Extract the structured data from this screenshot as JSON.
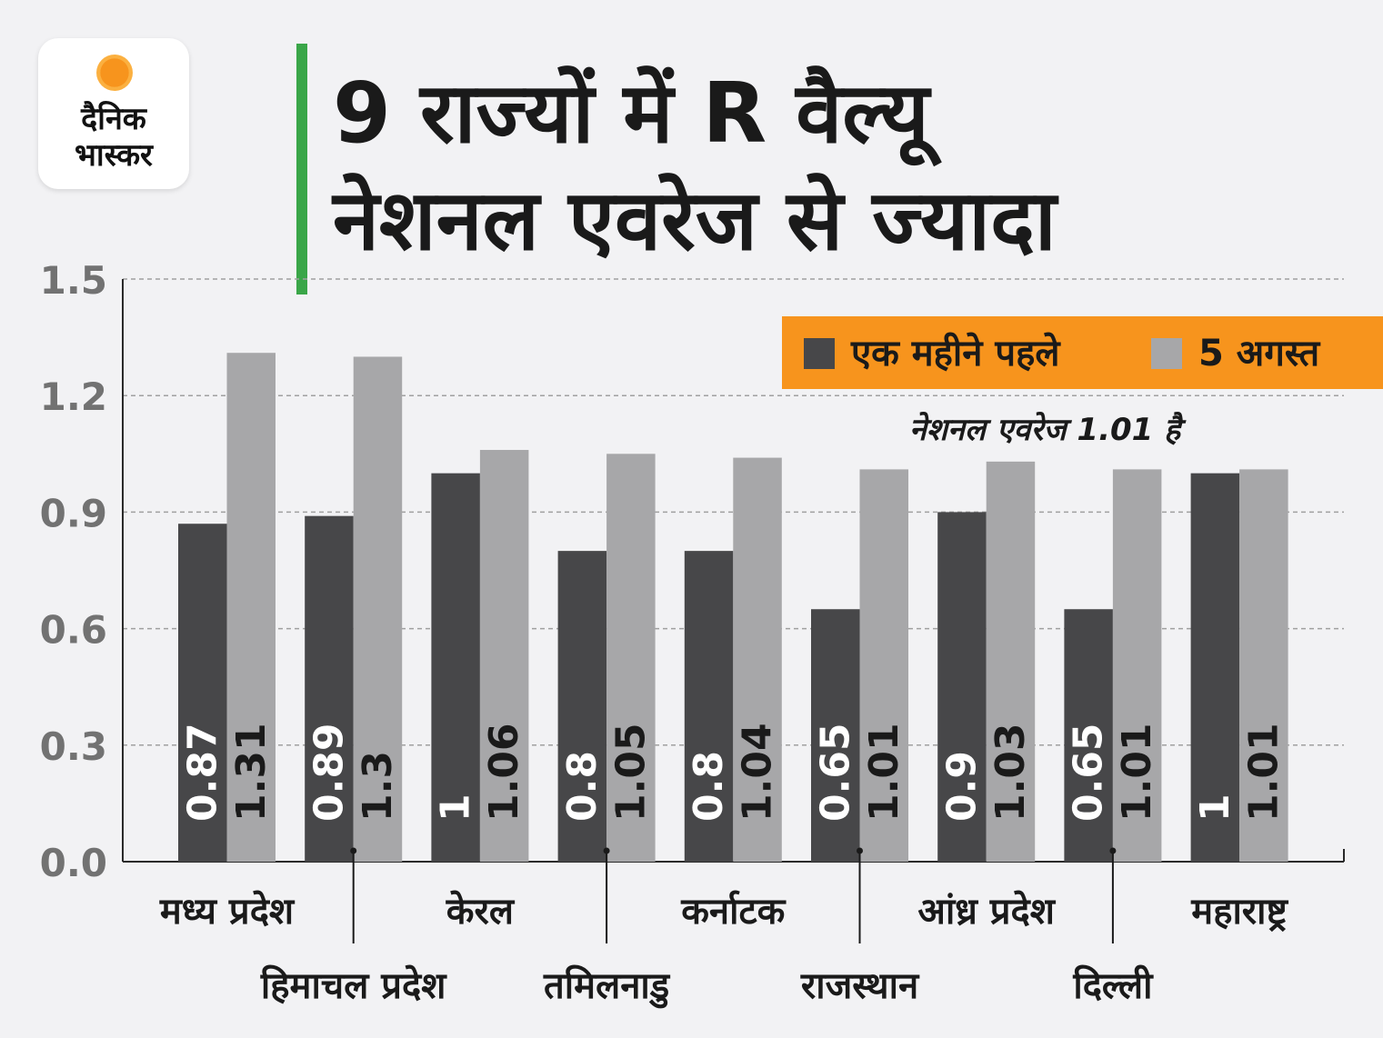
{
  "brand": {
    "line1": "दैनिक",
    "line2": "भास्कर"
  },
  "title": {
    "line1": "9 राज्यों में R वैल्यू",
    "line2": "नेशनल एवरेज से ज्यादा"
  },
  "note": "नेशनल एवरेज 1.01 है",
  "colors": {
    "accent": "#f7941d",
    "title_bar": "#3aa648",
    "series1": "#474749",
    "series2": "#a7a7a9"
  },
  "chart_data": {
    "type": "bar",
    "categories": [
      "मध्य प्रदेश",
      "हिमाचल प्रदेश",
      "केरल",
      "तमिलनाडु",
      "कर्नाटक",
      "राजस्थान",
      "आंध्र प्रदेश",
      "दिल्ली",
      "महाराष्ट्र"
    ],
    "series": [
      {
        "name": "एक महीने पहले",
        "values": [
          0.87,
          0.89,
          1,
          0.8,
          0.8,
          0.65,
          0.9,
          0.65,
          1
        ]
      },
      {
        "name": "5 अगस्त",
        "values": [
          1.31,
          1.3,
          1.06,
          1.05,
          1.04,
          1.01,
          1.03,
          1.01,
          1.01
        ]
      }
    ],
    "y_ticks": [
      "0.0",
      "0.3",
      "0.6",
      "0.9",
      "1.2",
      "1.5"
    ],
    "ylim": [
      0,
      1.5
    ],
    "grid": true,
    "legend_position": "top-right",
    "title": "",
    "xlabel": "",
    "ylabel": ""
  }
}
